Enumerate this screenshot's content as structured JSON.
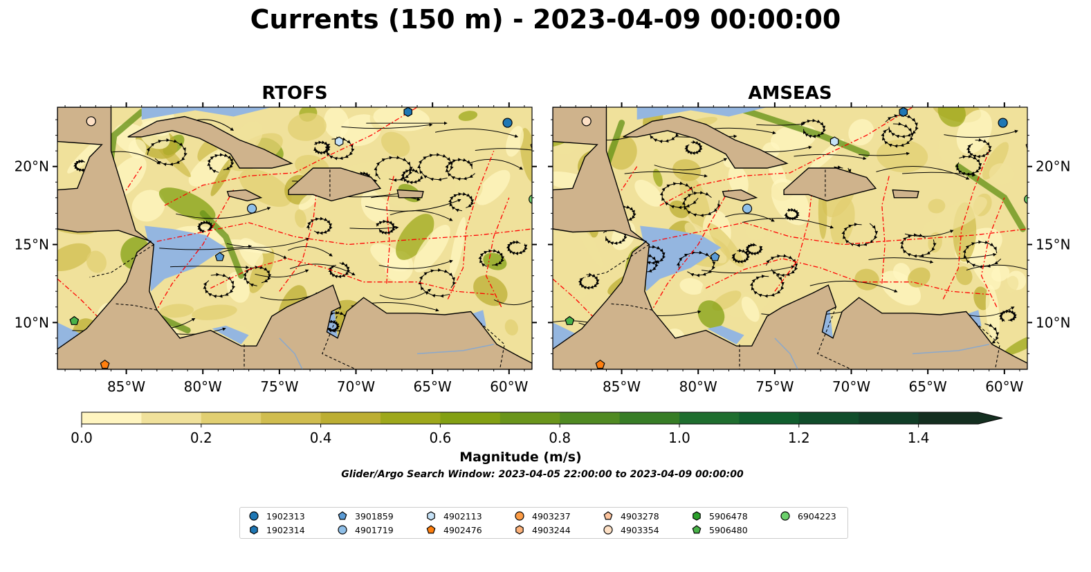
{
  "title": "Currents (150 m) - 2023-04-09 00:00:00",
  "panels": [
    {
      "title": "RTOFS"
    },
    {
      "title": "AMSEAS"
    }
  ],
  "axes": {
    "lon_ticks": [
      "85°W",
      "80°W",
      "75°W",
      "70°W",
      "65°W",
      "60°W"
    ],
    "lon_values": [
      -85,
      -80,
      -75,
      -70,
      -65,
      -60
    ],
    "lat_ticks": [
      "20°N",
      "15°N",
      "10°N"
    ],
    "lat_values": [
      20,
      15,
      10
    ],
    "lon_range": [
      -89.5,
      -58.5
    ],
    "lat_range": [
      7.0,
      23.8
    ]
  },
  "colors": {
    "land": "#cfb38c",
    "shallow_water": "#94b6e0",
    "current_low": "#fcf4c0",
    "current_mid": "#d9c563",
    "current_high": "#7a9c1e",
    "eez_lines": "#ff0000",
    "streamlines": "#000000"
  },
  "colorbar": {
    "label": "Magnitude (m/s)",
    "ticks": [
      "0.0",
      "0.2",
      "0.4",
      "0.6",
      "0.8",
      "1.0",
      "1.2",
      "1.4"
    ],
    "tick_values": [
      0.0,
      0.2,
      0.4,
      0.6,
      0.8,
      1.0,
      1.2,
      1.4
    ],
    "range": [
      0.0,
      1.5
    ],
    "colors": [
      "#fff5c0",
      "#f0e19b",
      "#e1cf72",
      "#d0bd4f",
      "#bcae33",
      "#9ea81b",
      "#83a013",
      "#6a951b",
      "#508a22",
      "#377d26",
      "#1f6e2f",
      "#115e2e",
      "#104d2b",
      "#113e27",
      "#142f20"
    ]
  },
  "search_window": "Glider/Argo Search Window: 2023-04-05 22:00:00 to 2023-04-09 00:00:00",
  "legend": [
    {
      "id": "1902313",
      "marker": "circle",
      "color": "#1f77b4"
    },
    {
      "id": "1902314",
      "marker": "hexagon",
      "color": "#1f77b4"
    },
    {
      "id": "3901859",
      "marker": "pentagon",
      "color": "#5b9bd5"
    },
    {
      "id": "4901719",
      "marker": "circle",
      "color": "#8fbfe8"
    },
    {
      "id": "4902113",
      "marker": "hexagon",
      "color": "#c6e2f7"
    },
    {
      "id": "4902476",
      "marker": "pentagon",
      "color": "#ff7f0e"
    },
    {
      "id": "4903237",
      "marker": "circle",
      "color": "#fd9c45"
    },
    {
      "id": "4903244",
      "marker": "hexagon",
      "color": "#fdb27a"
    },
    {
      "id": "4903278",
      "marker": "pentagon",
      "color": "#fdc49e"
    },
    {
      "id": "4903354",
      "marker": "circle",
      "color": "#fde0c5"
    },
    {
      "id": "5906478",
      "marker": "hexagon",
      "color": "#2ca02c"
    },
    {
      "id": "5906480",
      "marker": "pentagon",
      "color": "#49b349"
    },
    {
      "id": "6904223",
      "marker": "circle",
      "color": "#6cd16c"
    }
  ],
  "floats": [
    {
      "id": "1902313",
      "lon": -60.1,
      "lat": 22.8
    },
    {
      "id": "1902314",
      "lon": -66.6,
      "lat": 23.5
    },
    {
      "id": "3901859",
      "lon": -78.9,
      "lat": 14.2
    },
    {
      "id": "4901719",
      "lon": -76.8,
      "lat": 17.3
    },
    {
      "id": "4902113",
      "lon": -71.1,
      "lat": 21.6
    },
    {
      "id": "4902476",
      "lon": -86.4,
      "lat": 7.3
    },
    {
      "id": "4903278",
      "lon": -58.3,
      "lat": 21.3
    },
    {
      "id": "4903354",
      "lon": -87.3,
      "lat": 22.9
    },
    {
      "id": "5906480",
      "lon": -88.4,
      "lat": 10.1
    },
    {
      "id": "6904223",
      "lon": -58.4,
      "lat": 17.9
    }
  ]
}
